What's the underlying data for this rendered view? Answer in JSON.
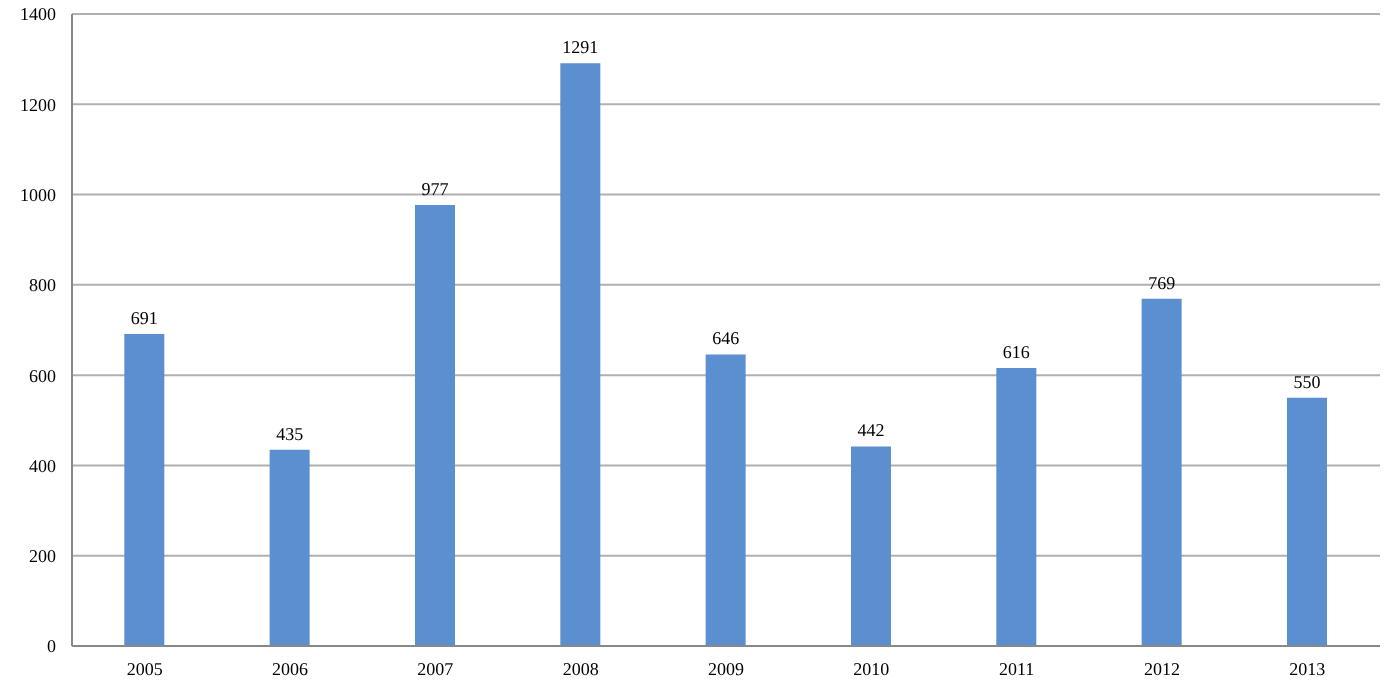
{
  "chart_data": {
    "type": "bar",
    "categories": [
      "2005",
      "2006",
      "2007",
      "2008",
      "2009",
      "2010",
      "2011",
      "2012",
      "2013"
    ],
    "values": [
      691,
      435,
      977,
      1291,
      646,
      442,
      616,
      769,
      550
    ],
    "color": "#5b8fd0",
    "ylim": [
      0,
      1400
    ],
    "yticks": [
      0,
      200,
      400,
      600,
      800,
      1000,
      1200,
      1400
    ],
    "grid": "y",
    "data_labels": true,
    "legend": false
  }
}
